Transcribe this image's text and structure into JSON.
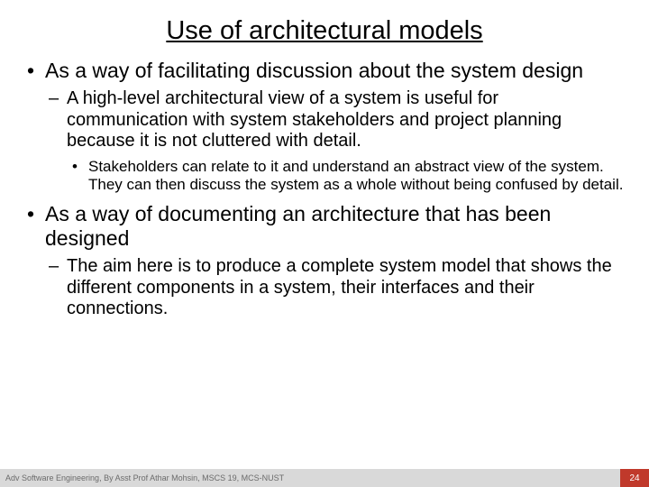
{
  "title": "Use of architectural models",
  "bullets": {
    "b1": "As a way of facilitating discussion about the system design",
    "b1_1": "A high-level architectural view of a system is useful for communication with system stakeholders and project planning because it is not cluttered with detail.",
    "b1_1_1": "Stakeholders can relate to it and understand an abstract view of the system. They can then discuss the system as a whole without being confused by detail.",
    "b2": "As a way of documenting an architecture that has been designed",
    "b2_1": "The aim here is to produce a complete system model that shows the different components in a system, their interfaces and their connections."
  },
  "footer": {
    "left": "Adv Software Engineering, By Asst Prof Athar Mohsin, MSCS 19, MCS-NUST",
    "page": "24"
  },
  "colors": {
    "footer_bg": "#d9d9d9",
    "accent": "#c0392b",
    "text": "#000000",
    "footer_text": "#6b6b6b"
  }
}
